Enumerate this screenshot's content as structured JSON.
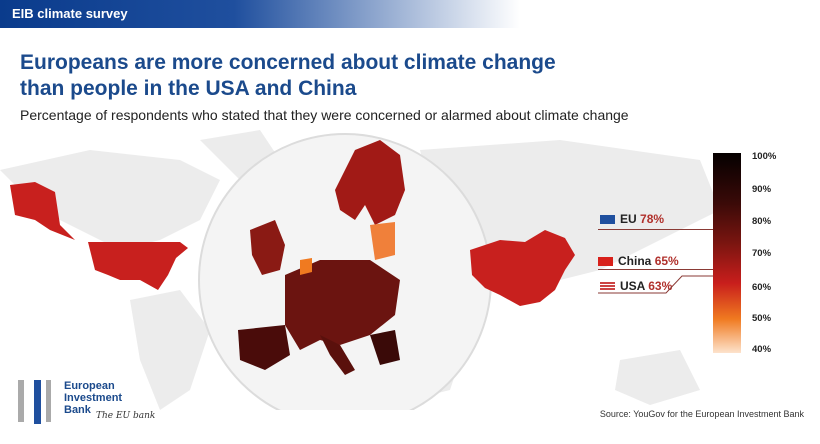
{
  "header": {
    "banner": "EIB climate survey"
  },
  "title": "Europeans are more concerned about climate change than people in the USA and China",
  "subtitle": "Percentage of respondents who stated that they were concerned or alarmed about climate change",
  "chart_data": {
    "type": "map",
    "regions": [
      {
        "name": "EU",
        "label": "EU",
        "value": 78,
        "value_text": "78%",
        "flag": "eu-flag"
      },
      {
        "name": "China",
        "label": "China",
        "value": 65,
        "value_text": "65%",
        "flag": "china-flag"
      },
      {
        "name": "USA",
        "label": "USA",
        "value": 63,
        "value_text": "63%",
        "flag": "usa-flag"
      }
    ],
    "colorbar": {
      "range": [
        40,
        100
      ],
      "ticks": [
        "100%",
        "90%",
        "80%",
        "70%",
        "60%",
        "50%",
        "40%"
      ]
    }
  },
  "colors": {
    "brand": "#1b4a8c",
    "pct": "#b0302b",
    "us": "#c8201e",
    "cn": "#c8201e",
    "eu": "#7a1a14"
  },
  "logo": {
    "name": "European Investment Bank",
    "line1": "European",
    "line2": "Investment",
    "line3": "Bank",
    "tagline": "The EU bank"
  },
  "source": "Source: YouGov for the European Investment Bank"
}
